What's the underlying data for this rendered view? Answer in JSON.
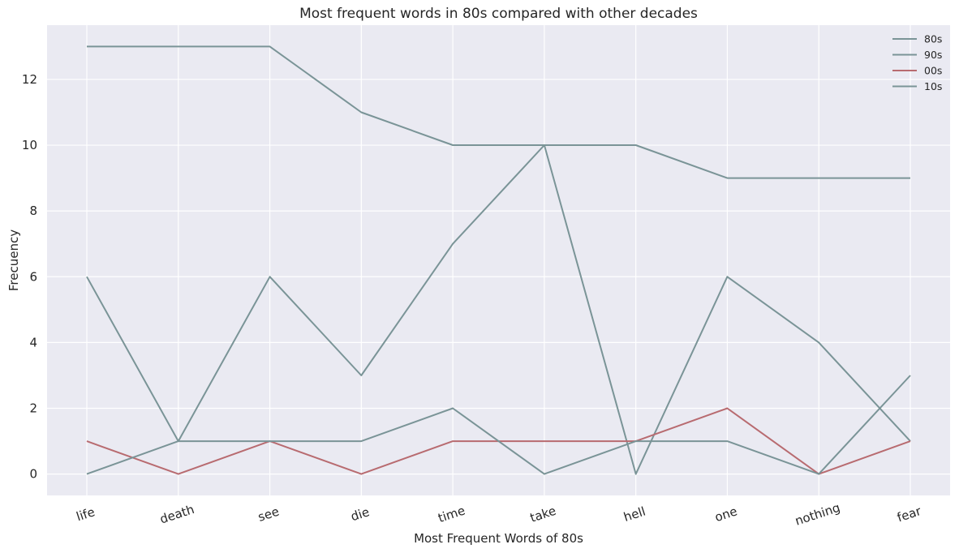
{
  "chart_data": {
    "type": "line",
    "title": "Most frequent words in 80s compared with other decades",
    "xlabel": "Most Frequent Words of 80s",
    "ylabel": "Frecuency",
    "categories": [
      "life",
      "death",
      "see",
      "die",
      "time",
      "take",
      "hell",
      "one",
      "nothing",
      "fear"
    ],
    "ylim": [
      -0.65,
      13.65
    ],
    "yticks": [
      0,
      2,
      4,
      6,
      8,
      10,
      12
    ],
    "grid": true,
    "legend_position": "top-right",
    "series": [
      {
        "name": "80s",
        "color": "#7a9497",
        "values": [
          13,
          13,
          13,
          11,
          10,
          10,
          10,
          9,
          9,
          9
        ]
      },
      {
        "name": "90s",
        "color": "#7a9497",
        "values": [
          6,
          1,
          6,
          3,
          7,
          10,
          0,
          6,
          4,
          1
        ]
      },
      {
        "name": "00s",
        "color": "#b86b70",
        "values": [
          1,
          0,
          1,
          0,
          1,
          1,
          1,
          2,
          0,
          1
        ]
      },
      {
        "name": "10s",
        "color": "#7a9497",
        "values": [
          0,
          1,
          1,
          1,
          2,
          0,
          1,
          1,
          0,
          3
        ]
      }
    ]
  }
}
